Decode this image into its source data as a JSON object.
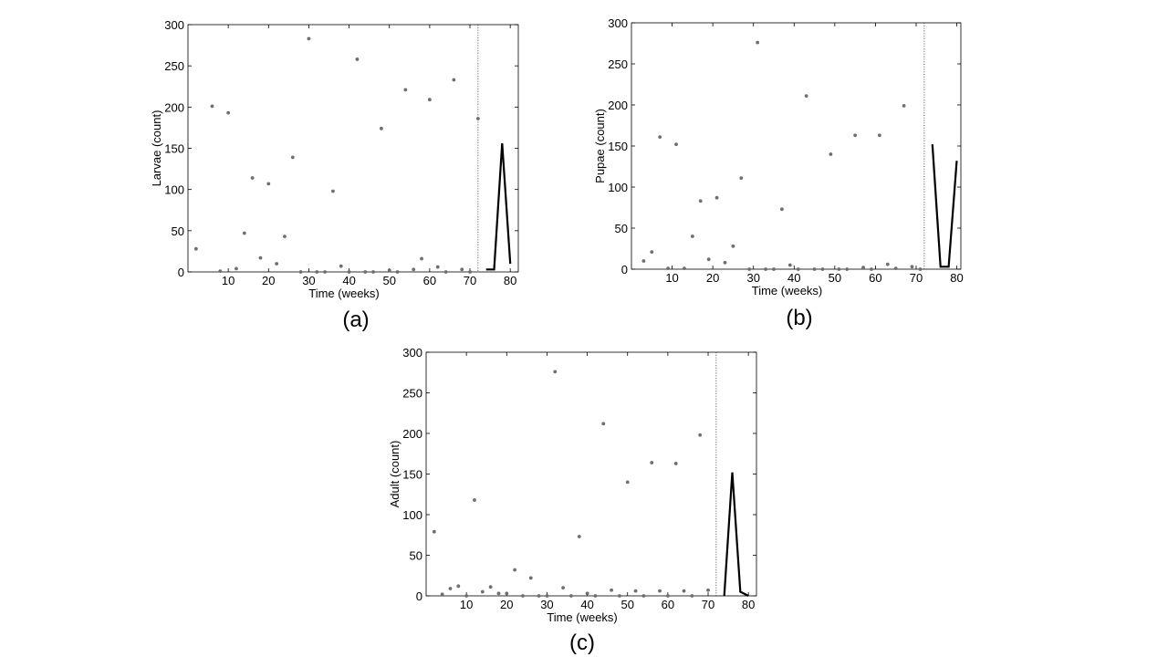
{
  "chart_data": [
    {
      "panel_label": "(a)",
      "type": "scatter",
      "xlabel": "Time (weeks)",
      "ylabel": "Larvae (count)",
      "xlim": [
        0,
        82
      ],
      "ylim": [
        0,
        300
      ],
      "xticks": [
        10,
        20,
        30,
        40,
        50,
        60,
        70,
        80
      ],
      "yticks": [
        0,
        50,
        100,
        150,
        200,
        250,
        300
      ],
      "grid": false,
      "divider_x": 72,
      "points": [
        [
          2,
          28
        ],
        [
          6,
          201
        ],
        [
          8,
          1
        ],
        [
          10,
          193
        ],
        [
          12,
          4
        ],
        [
          14,
          47
        ],
        [
          16,
          114
        ],
        [
          18,
          17
        ],
        [
          20,
          107
        ],
        [
          22,
          10
        ],
        [
          24,
          43
        ],
        [
          26,
          139
        ],
        [
          28,
          0
        ],
        [
          30,
          283
        ],
        [
          32,
          0
        ],
        [
          34,
          0
        ],
        [
          36,
          98
        ],
        [
          38,
          7
        ],
        [
          40,
          0
        ],
        [
          42,
          258
        ],
        [
          44,
          0
        ],
        [
          46,
          0
        ],
        [
          48,
          174
        ],
        [
          50,
          2
        ],
        [
          52,
          0
        ],
        [
          54,
          221
        ],
        [
          56,
          3
        ],
        [
          58,
          16
        ],
        [
          60,
          209
        ],
        [
          62,
          6
        ],
        [
          64,
          0
        ],
        [
          66,
          233
        ],
        [
          68,
          3
        ],
        [
          70,
          0
        ],
        [
          72,
          186
        ]
      ],
      "forecast": [
        [
          74,
          3
        ],
        [
          76,
          3
        ],
        [
          78,
          156
        ],
        [
          80,
          10
        ]
      ]
    },
    {
      "panel_label": "(b)",
      "type": "scatter",
      "xlabel": "Time (weeks)",
      "ylabel": "Pupae (count)",
      "xlim": [
        0,
        81
      ],
      "ylim": [
        0,
        300
      ],
      "xticks": [
        10,
        20,
        30,
        40,
        50,
        60,
        70,
        80
      ],
      "yticks": [
        0,
        50,
        100,
        150,
        200,
        250,
        300
      ],
      "grid": false,
      "divider_x": 72,
      "points": [
        [
          3,
          10
        ],
        [
          5,
          21
        ],
        [
          7,
          161
        ],
        [
          9,
          1
        ],
        [
          11,
          152
        ],
        [
          13,
          1
        ],
        [
          15,
          40
        ],
        [
          17,
          83
        ],
        [
          19,
          12
        ],
        [
          21,
          87
        ],
        [
          23,
          8
        ],
        [
          25,
          28
        ],
        [
          27,
          111
        ],
        [
          29,
          0
        ],
        [
          31,
          276
        ],
        [
          33,
          0
        ],
        [
          35,
          0
        ],
        [
          37,
          73
        ],
        [
          39,
          5
        ],
        [
          41,
          0
        ],
        [
          43,
          211
        ],
        [
          45,
          0
        ],
        [
          47,
          0
        ],
        [
          49,
          140
        ],
        [
          51,
          0
        ],
        [
          53,
          0
        ],
        [
          55,
          163
        ],
        [
          57,
          2
        ],
        [
          59,
          0
        ],
        [
          61,
          163
        ],
        [
          63,
          6
        ],
        [
          65,
          1
        ],
        [
          67,
          199
        ],
        [
          69,
          3
        ],
        [
          71,
          0
        ]
      ],
      "forecast": [
        [
          74,
          152
        ],
        [
          76,
          3
        ],
        [
          78,
          3
        ],
        [
          80,
          132
        ]
      ]
    },
    {
      "panel_label": "(c)",
      "type": "scatter",
      "xlabel": "Time (weeks)",
      "ylabel": "Adult (count)",
      "xlim": [
        0,
        82
      ],
      "ylim": [
        0,
        300
      ],
      "xticks": [
        10,
        20,
        30,
        40,
        50,
        60,
        70,
        80
      ],
      "yticks": [
        0,
        50,
        100,
        150,
        200,
        250,
        300
      ],
      "grid": false,
      "divider_x": 72,
      "points": [
        [
          2,
          79
        ],
        [
          4,
          2
        ],
        [
          6,
          9
        ],
        [
          8,
          12
        ],
        [
          10,
          0
        ],
        [
          12,
          118
        ],
        [
          14,
          5
        ],
        [
          16,
          11
        ],
        [
          18,
          3
        ],
        [
          20,
          3
        ],
        [
          22,
          32
        ],
        [
          24,
          0
        ],
        [
          26,
          22
        ],
        [
          28,
          0
        ],
        [
          30,
          0
        ],
        [
          32,
          276
        ],
        [
          34,
          10
        ],
        [
          36,
          0
        ],
        [
          38,
          73
        ],
        [
          40,
          3
        ],
        [
          42,
          0
        ],
        [
          44,
          212
        ],
        [
          46,
          7
        ],
        [
          48,
          0
        ],
        [
          50,
          140
        ],
        [
          52,
          6
        ],
        [
          54,
          0
        ],
        [
          56,
          164
        ],
        [
          58,
          6
        ],
        [
          60,
          0
        ],
        [
          62,
          163
        ],
        [
          64,
          6
        ],
        [
          66,
          0
        ],
        [
          68,
          198
        ],
        [
          70,
          7
        ]
      ],
      "forecast": [
        [
          74,
          0
        ],
        [
          76,
          152
        ],
        [
          78,
          5
        ],
        [
          80,
          0
        ]
      ]
    }
  ]
}
